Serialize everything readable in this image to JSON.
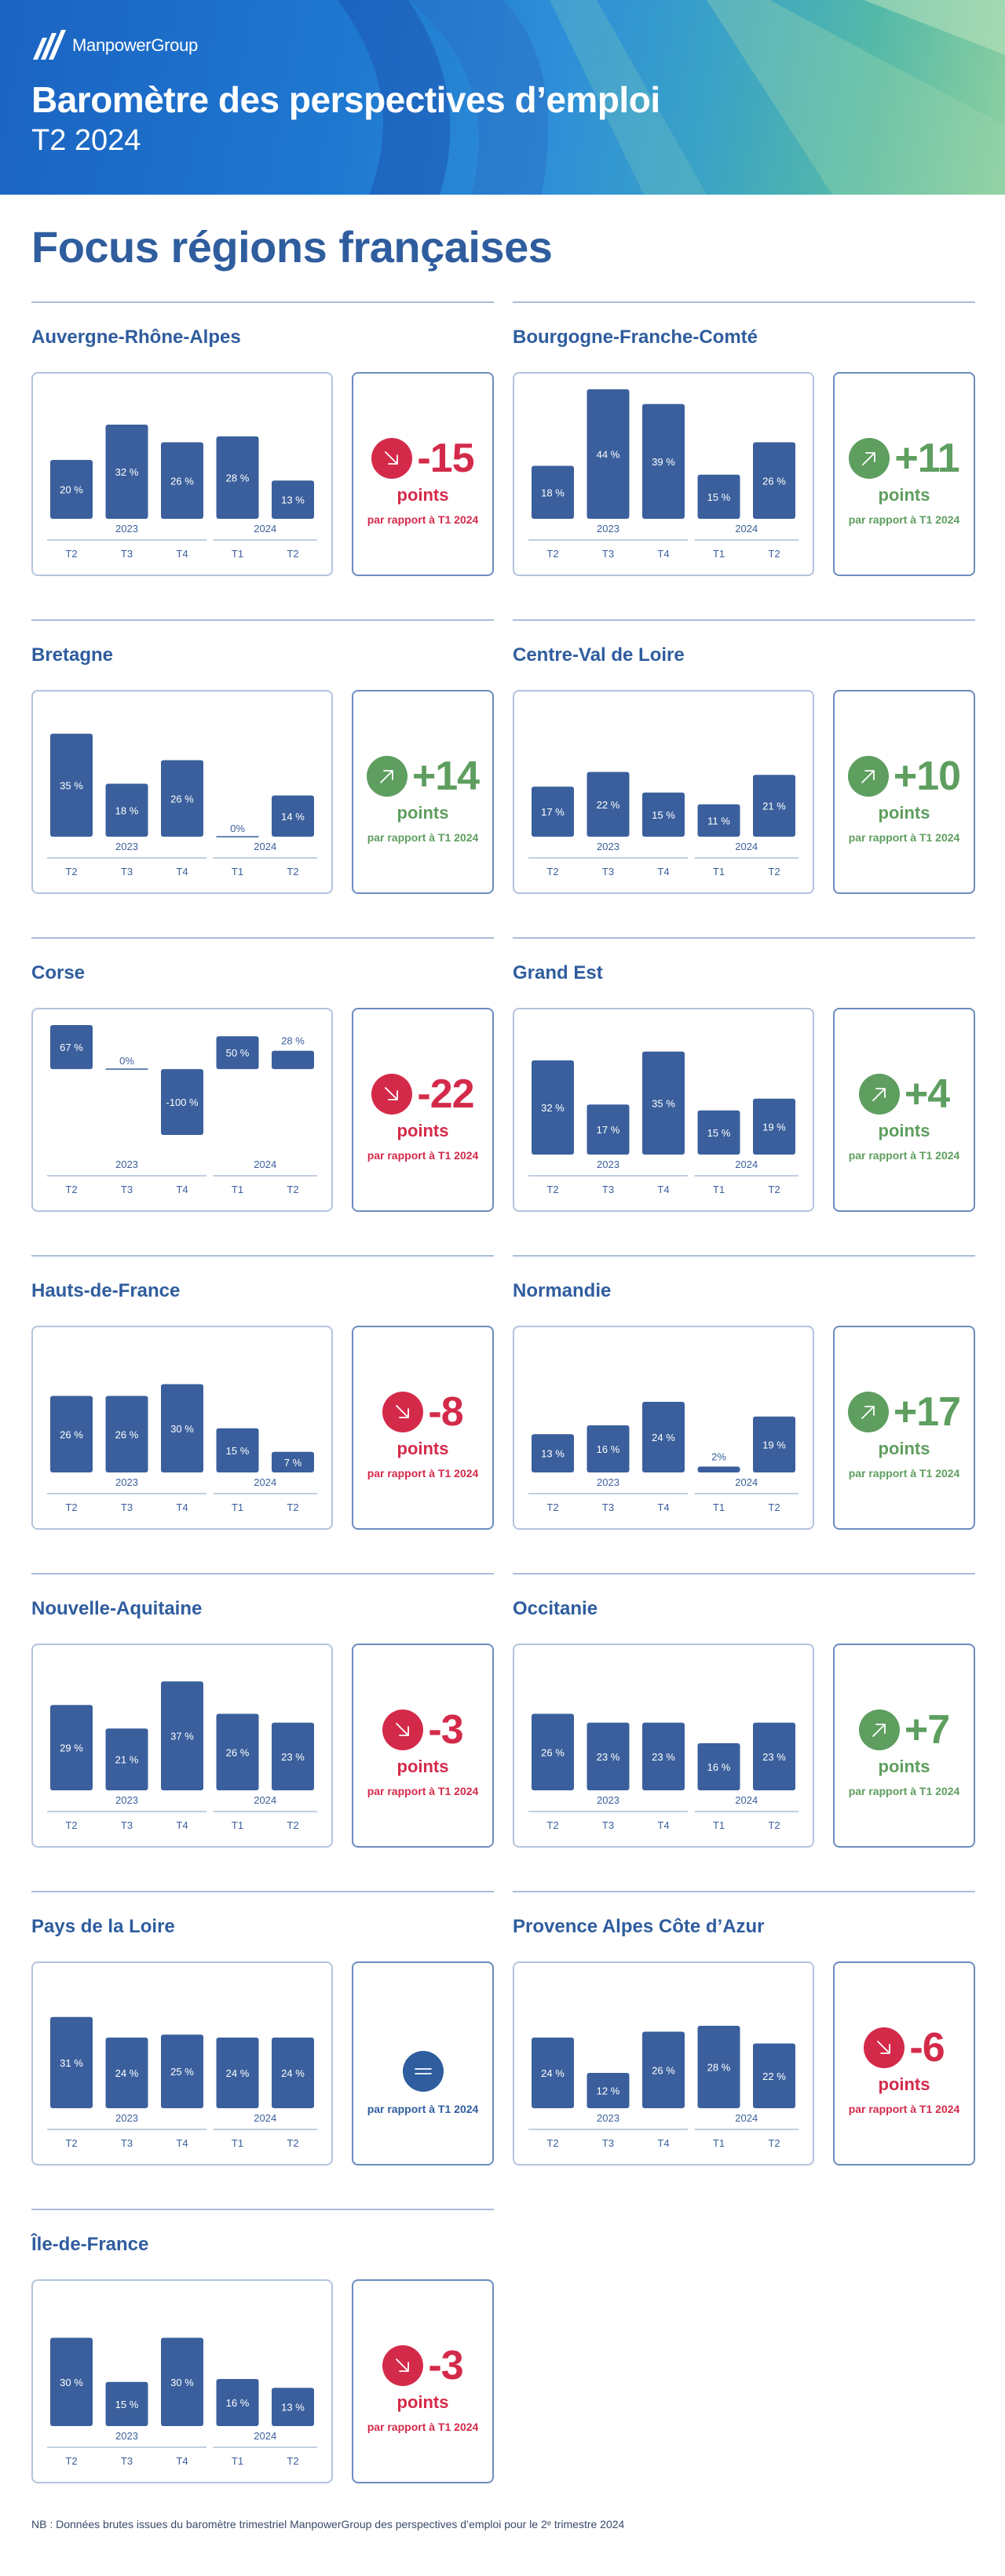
{
  "header": {
    "brand": "ManpowerGroup",
    "title": "Baromètre des perspectives d’emploi",
    "subtitle": "T2 2024"
  },
  "page_title": "Focus régions françaises",
  "quarter_labels": [
    "T2",
    "T3",
    "T4",
    "T1",
    "T2"
  ],
  "year_labels": [
    "2023",
    "2024"
  ],
  "points_label": "points",
  "compare_label": "par rapport à T1 2024",
  "footnote": "NB : Données brutes issues du baromètre trimestriel ManpowerGroup des perspectives d’emploi pour le 2ᵉ trimestre 2024",
  "colors": {
    "bar": "#3a5f9c",
    "down": "#d42a4a",
    "up": "#5e9e5f",
    "neutral": "#2f5d9e"
  },
  "chart_data": [
    {
      "type": "bar",
      "title": "Auvergne-Rhône-Alpes",
      "categories": [
        "T2",
        "T3",
        "T4",
        "T1",
        "T2"
      ],
      "values": [
        20,
        32,
        26,
        28,
        13
      ],
      "labels": [
        "20 %",
        "32 %",
        "26 %",
        "28 %",
        "13 %"
      ],
      "delta": "-15",
      "trend": "down"
    },
    {
      "type": "bar",
      "title": "Bourgogne-Franche-Comté",
      "categories": [
        "T2",
        "T3",
        "T4",
        "T1",
        "T2"
      ],
      "values": [
        18,
        44,
        39,
        15,
        26
      ],
      "labels": [
        "18 %",
        "44 %",
        "39 %",
        "15 %",
        "26 %"
      ],
      "delta": "+11",
      "trend": "up"
    },
    {
      "type": "bar",
      "title": "Bretagne",
      "categories": [
        "T2",
        "T3",
        "T4",
        "T1",
        "T2"
      ],
      "values": [
        35,
        18,
        26,
        0,
        14
      ],
      "labels": [
        "35 %",
        "18 %",
        "26 %",
        "0%",
        "14 %"
      ],
      "delta": "+14",
      "trend": "up"
    },
    {
      "type": "bar",
      "title": "Centre-Val de Loire",
      "categories": [
        "T2",
        "T3",
        "T4",
        "T1",
        "T2"
      ],
      "values": [
        17,
        22,
        15,
        11,
        21
      ],
      "labels": [
        "17 %",
        "22 %",
        "15 %",
        "11 %",
        "21 %"
      ],
      "delta": "+10",
      "trend": "up"
    },
    {
      "type": "bar",
      "title": "Corse",
      "categories": [
        "T2",
        "T3",
        "T4",
        "T1",
        "T2"
      ],
      "values": [
        67,
        0,
        -100,
        50,
        28
      ],
      "labels": [
        "67 %",
        "0%",
        "-100 %",
        "50 %",
        "28 %"
      ],
      "delta": "-22",
      "trend": "down"
    },
    {
      "type": "bar",
      "title": "Grand Est",
      "categories": [
        "T2",
        "T3",
        "T4",
        "T1",
        "T2"
      ],
      "values": [
        32,
        17,
        35,
        15,
        19
      ],
      "labels": [
        "32 %",
        "17 %",
        "35 %",
        "15 %",
        "19 %"
      ],
      "delta": "+4",
      "trend": "up"
    },
    {
      "type": "bar",
      "title": "Hauts-de-France",
      "categories": [
        "T2",
        "T3",
        "T4",
        "T1",
        "T2"
      ],
      "values": [
        26,
        26,
        30,
        15,
        7
      ],
      "labels": [
        "26 %",
        "26 %",
        "30 %",
        "15 %",
        "7 %"
      ],
      "delta": "-8",
      "trend": "down"
    },
    {
      "type": "bar",
      "title": "Normandie",
      "categories": [
        "T2",
        "T3",
        "T4",
        "T1",
        "T2"
      ],
      "values": [
        13,
        16,
        24,
        2,
        19
      ],
      "labels": [
        "13 %",
        "16 %",
        "24 %",
        "2%",
        "19 %"
      ],
      "delta": "+17",
      "trend": "up"
    },
    {
      "type": "bar",
      "title": "Nouvelle-Aquitaine",
      "categories": [
        "T2",
        "T3",
        "T4",
        "T1",
        "T2"
      ],
      "values": [
        29,
        21,
        37,
        26,
        23
      ],
      "labels": [
        "29 %",
        "21 %",
        "37 %",
        "26 %",
        "23 %"
      ],
      "delta": "-3",
      "trend": "down"
    },
    {
      "type": "bar",
      "title": "Occitanie",
      "categories": [
        "T2",
        "T3",
        "T4",
        "T1",
        "T2"
      ],
      "values": [
        26,
        23,
        23,
        16,
        23
      ],
      "labels": [
        "26 %",
        "23 %",
        "23 %",
        "16 %",
        "23 %"
      ],
      "delta": "+7",
      "trend": "up"
    },
    {
      "type": "bar",
      "title": "Pays de la Loire",
      "categories": [
        "T2",
        "T3",
        "T4",
        "T1",
        "T2"
      ],
      "values": [
        31,
        24,
        25,
        24,
        24
      ],
      "labels": [
        "31 %",
        "24 %",
        "25 %",
        "24 %",
        "24 %"
      ],
      "delta": "",
      "trend": "equal"
    },
    {
      "type": "bar",
      "title": "Provence Alpes Côte d’Azur",
      "categories": [
        "T2",
        "T3",
        "T4",
        "T1",
        "T2"
      ],
      "values": [
        24,
        12,
        26,
        28,
        22
      ],
      "labels": [
        "24 %",
        "12 %",
        "26 %",
        "28 %",
        "22 %"
      ],
      "delta": "-6",
      "trend": "down"
    },
    {
      "type": "bar",
      "title": "Île-de-France",
      "categories": [
        "T2",
        "T3",
        "T4",
        "T1",
        "T2"
      ],
      "values": [
        30,
        15,
        30,
        16,
        13
      ],
      "labels": [
        "30 %",
        "15 %",
        "30 %",
        "16 %",
        "13 %"
      ],
      "delta": "-3",
      "trend": "down"
    }
  ]
}
